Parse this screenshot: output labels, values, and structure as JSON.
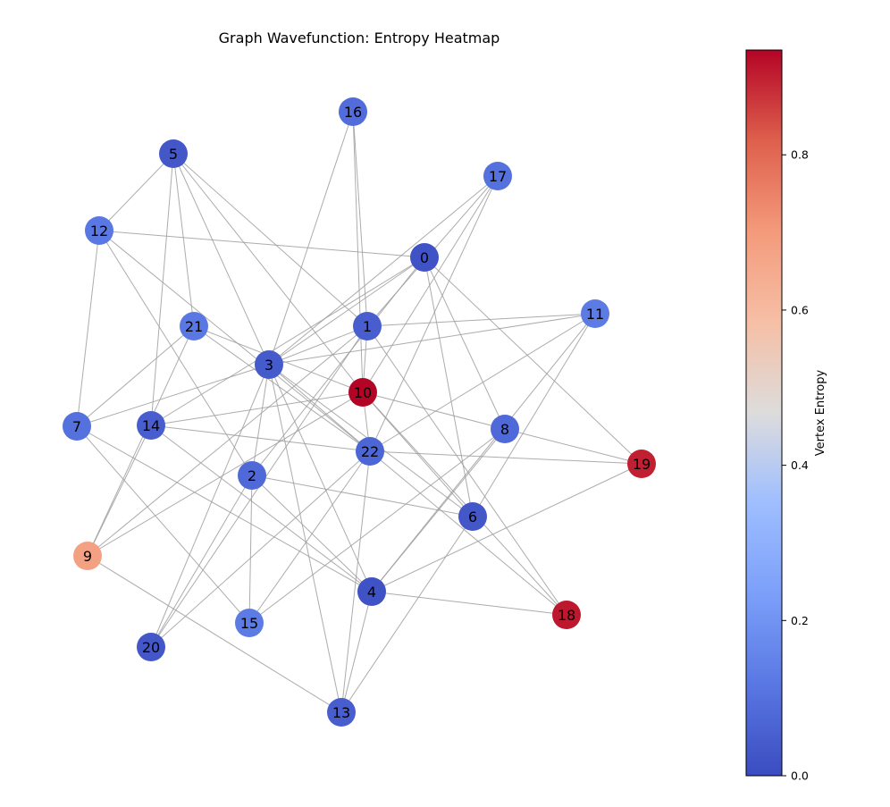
{
  "title": "Graph Wavefunction: Entropy Heatmap",
  "colorbar": {
    "label": "Vertex Entropy",
    "min": 0.0,
    "max": 0.935,
    "ticks": [
      "0.0",
      "0.2",
      "0.4",
      "0.6",
      "0.8"
    ],
    "tick_values": [
      0.0,
      0.2,
      0.4,
      0.6,
      0.8
    ],
    "colormap": "coolwarm"
  },
  "nodes": [
    {
      "id": "0",
      "entropy": 0.02
    },
    {
      "id": "1",
      "entropy": 0.05
    },
    {
      "id": "2",
      "entropy": 0.08
    },
    {
      "id": "3",
      "entropy": 0.04
    },
    {
      "id": "4",
      "entropy": 0.02
    },
    {
      "id": "5",
      "entropy": 0.03
    },
    {
      "id": "6",
      "entropy": 0.03
    },
    {
      "id": "7",
      "entropy": 0.1
    },
    {
      "id": "8",
      "entropy": 0.08
    },
    {
      "id": "9",
      "entropy": 0.68
    },
    {
      "id": "10",
      "entropy": 0.935
    },
    {
      "id": "11",
      "entropy": 0.13
    },
    {
      "id": "12",
      "entropy": 0.12
    },
    {
      "id": "13",
      "entropy": 0.05
    },
    {
      "id": "14",
      "entropy": 0.05
    },
    {
      "id": "15",
      "entropy": 0.13
    },
    {
      "id": "16",
      "entropy": 0.09
    },
    {
      "id": "17",
      "entropy": 0.1
    },
    {
      "id": "18",
      "entropy": 0.91
    },
    {
      "id": "19",
      "entropy": 0.9
    },
    {
      "id": "20",
      "entropy": 0.03
    },
    {
      "id": "21",
      "entropy": 0.12
    },
    {
      "id": "22",
      "entropy": 0.07
    }
  ],
  "edges": [
    [
      "5",
      "12"
    ],
    [
      "5",
      "21"
    ],
    [
      "5",
      "14"
    ],
    [
      "5",
      "3"
    ],
    [
      "5",
      "10"
    ],
    [
      "5",
      "1"
    ],
    [
      "12",
      "0"
    ],
    [
      "12",
      "7"
    ],
    [
      "12",
      "22"
    ],
    [
      "12",
      "2"
    ],
    [
      "16",
      "1"
    ],
    [
      "16",
      "10"
    ],
    [
      "16",
      "3"
    ],
    [
      "17",
      "3"
    ],
    [
      "17",
      "1"
    ],
    [
      "17",
      "10"
    ],
    [
      "17",
      "22"
    ],
    [
      "0",
      "3"
    ],
    [
      "0",
      "2"
    ],
    [
      "0",
      "8"
    ],
    [
      "0",
      "19"
    ],
    [
      "0",
      "6"
    ],
    [
      "0",
      "14"
    ],
    [
      "1",
      "11"
    ],
    [
      "1",
      "3"
    ],
    [
      "1",
      "10"
    ],
    [
      "1",
      "18"
    ],
    [
      "1",
      "9"
    ],
    [
      "1",
      "20"
    ],
    [
      "11",
      "3"
    ],
    [
      "11",
      "22"
    ],
    [
      "11",
      "6"
    ],
    [
      "11",
      "4"
    ],
    [
      "21",
      "7"
    ],
    [
      "21",
      "9"
    ],
    [
      "21",
      "22"
    ],
    [
      "21",
      "10"
    ],
    [
      "3",
      "7"
    ],
    [
      "3",
      "2"
    ],
    [
      "3",
      "22"
    ],
    [
      "3",
      "6"
    ],
    [
      "3",
      "4"
    ],
    [
      "3",
      "20"
    ],
    [
      "3",
      "13"
    ],
    [
      "10",
      "8"
    ],
    [
      "10",
      "14"
    ],
    [
      "10",
      "6"
    ],
    [
      "10",
      "18"
    ],
    [
      "10",
      "9"
    ],
    [
      "10",
      "22"
    ],
    [
      "7",
      "4"
    ],
    [
      "7",
      "15"
    ],
    [
      "14",
      "22"
    ],
    [
      "14",
      "4"
    ],
    [
      "14",
      "9"
    ],
    [
      "22",
      "19"
    ],
    [
      "22",
      "13"
    ],
    [
      "22",
      "15"
    ],
    [
      "22",
      "20"
    ],
    [
      "22",
      "18"
    ],
    [
      "8",
      "19"
    ],
    [
      "8",
      "4"
    ],
    [
      "8",
      "15"
    ],
    [
      "2",
      "6"
    ],
    [
      "2",
      "15"
    ],
    [
      "2",
      "4"
    ],
    [
      "2",
      "20"
    ],
    [
      "19",
      "4"
    ],
    [
      "6",
      "13"
    ],
    [
      "9",
      "13"
    ],
    [
      "4",
      "18"
    ],
    [
      "4",
      "13"
    ]
  ]
}
